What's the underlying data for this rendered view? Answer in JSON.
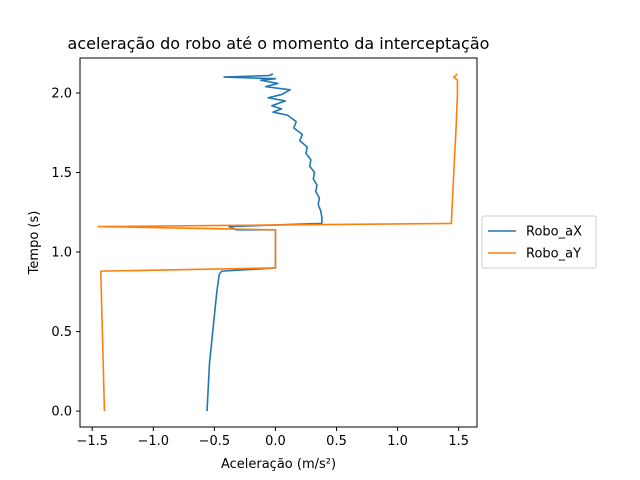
{
  "chart_data": {
    "type": "line",
    "title": "aceleração do robo até o momento da interceptação",
    "xlabel": "Aceleração (m/s²)",
    "ylabel": "Tempo (s)",
    "xlim": [
      -1.6,
      1.65
    ],
    "ylim": [
      -0.1,
      2.22
    ],
    "xticks": [
      -1.5,
      -1.0,
      -0.5,
      0.0,
      0.5,
      1.0,
      1.5
    ],
    "xtick_labels": [
      "−1.5",
      "−1.0",
      "−0.5",
      "0.0",
      "0.5",
      "1.0",
      "1.5"
    ],
    "yticks": [
      0.0,
      0.5,
      1.0,
      1.5,
      2.0
    ],
    "ytick_labels": [
      "0.0",
      "0.5",
      "1.0",
      "1.5",
      "2.0"
    ],
    "grid": false,
    "legend_position": "right-outside",
    "series": [
      {
        "name": "Robo_aX",
        "color": "#1f77b4",
        "points": [
          [
            -0.56,
            0.0
          ],
          [
            -0.55,
            0.15
          ],
          [
            -0.54,
            0.3
          ],
          [
            -0.52,
            0.45
          ],
          [
            -0.5,
            0.6
          ],
          [
            -0.48,
            0.75
          ],
          [
            -0.46,
            0.86
          ],
          [
            -0.44,
            0.88
          ],
          [
            0.0,
            0.9
          ],
          [
            0.0,
            1.14
          ],
          [
            -0.32,
            1.14
          ],
          [
            -0.38,
            1.16
          ],
          [
            0.38,
            1.18
          ],
          [
            0.38,
            1.22
          ],
          [
            0.37,
            1.26
          ],
          [
            0.35,
            1.3
          ],
          [
            0.36,
            1.34
          ],
          [
            0.33,
            1.38
          ],
          [
            0.34,
            1.42
          ],
          [
            0.31,
            1.46
          ],
          [
            0.32,
            1.5
          ],
          [
            0.28,
            1.54
          ],
          [
            0.29,
            1.58
          ],
          [
            0.25,
            1.62
          ],
          [
            0.26,
            1.66
          ],
          [
            0.2,
            1.7
          ],
          [
            0.22,
            1.74
          ],
          [
            0.15,
            1.78
          ],
          [
            0.17,
            1.82
          ],
          [
            0.1,
            1.86
          ],
          [
            -0.02,
            1.88
          ],
          [
            0.05,
            1.9
          ],
          [
            -0.03,
            1.92
          ],
          [
            0.08,
            1.95
          ],
          [
            -0.06,
            1.97
          ],
          [
            0.05,
            1.99
          ],
          [
            0.12,
            2.02
          ],
          [
            -0.08,
            2.04
          ],
          [
            0.02,
            2.06
          ],
          [
            -0.12,
            2.08
          ],
          [
            0.0,
            2.09
          ],
          [
            -0.42,
            2.1
          ],
          [
            -0.05,
            2.11
          ],
          [
            -0.02,
            2.12
          ]
        ]
      },
      {
        "name": "Robo_aY",
        "color": "#ff7f0e",
        "points": [
          [
            -1.4,
            0.0
          ],
          [
            -1.43,
            0.88
          ],
          [
            0.0,
            0.9
          ],
          [
            0.0,
            1.14
          ],
          [
            -1.45,
            1.16
          ],
          [
            1.44,
            1.18
          ],
          [
            1.46,
            1.5
          ],
          [
            1.48,
            1.8
          ],
          [
            1.49,
            2.0
          ],
          [
            1.49,
            2.08
          ],
          [
            1.46,
            2.1
          ],
          [
            1.49,
            2.12
          ]
        ]
      }
    ]
  }
}
